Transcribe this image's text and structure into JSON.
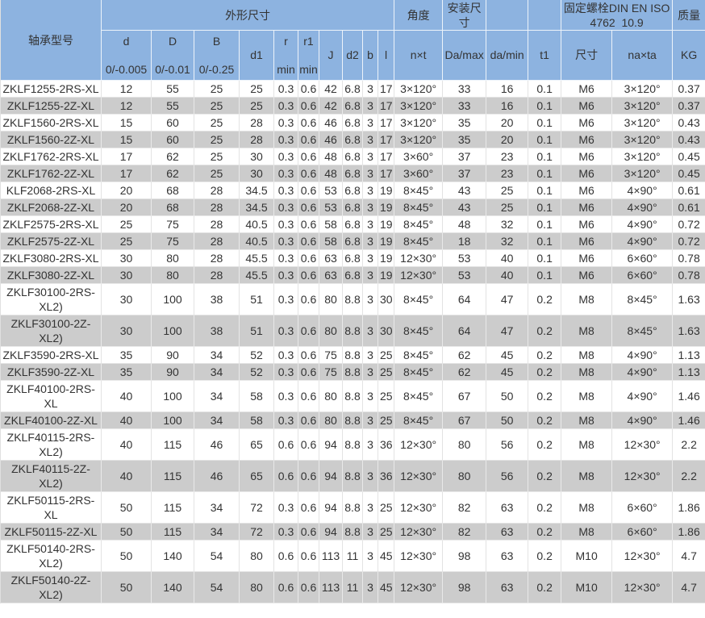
{
  "colors": {
    "header_bg": "#8db3e0",
    "row_stripe": "#cccccc",
    "row_bg": "#ffffff",
    "text": "#333333"
  },
  "table": {
    "header": {
      "model": "轴承型号",
      "group_dimensions": "外形尺寸",
      "group_angle": "角度",
      "group_mounting": "安装尺寸",
      "group_bolt_line1": "固定螺栓DIN EN ISO",
      "group_bolt_line2": "4762  10.9",
      "group_mass": "质量"
    },
    "columns": [
      {
        "label": "d",
        "sub": "0/-0.005"
      },
      {
        "label": "D",
        "sub": "0/-0.01"
      },
      {
        "label": "B",
        "sub": "0/-0.25"
      },
      {
        "label": "d1",
        "sub": ""
      },
      {
        "label": "r",
        "sub": "min"
      },
      {
        "label": "r1",
        "sub": "min"
      },
      {
        "label": "J",
        "sub": ""
      },
      {
        "label": "d2",
        "sub": ""
      },
      {
        "label": "b",
        "sub": ""
      },
      {
        "label": "l",
        "sub": ""
      },
      {
        "label": "n×t",
        "sub": ""
      },
      {
        "label": "Da/max",
        "sub": ""
      },
      {
        "label": "da/min",
        "sub": ""
      },
      {
        "label": "t1",
        "sub": ""
      },
      {
        "label": "尺寸",
        "sub": ""
      },
      {
        "label": "na×ta",
        "sub": ""
      },
      {
        "label": "KG",
        "sub": ""
      }
    ],
    "rows": [
      [
        "ZKLF1255-2RS-XL",
        "12",
        "55",
        "25",
        "25",
        "0.3",
        "0.6",
        "42",
        "6.8",
        "3",
        "17",
        "3×120°",
        "33",
        "16",
        "0.1",
        "M6",
        "3×120°",
        "0.37"
      ],
      [
        "ZKLF1255-2Z-XL",
        "12",
        "55",
        "25",
        "25",
        "0.3",
        "0.6",
        "42",
        "6.8",
        "3",
        "17",
        "3×120°",
        "33",
        "16",
        "0.1",
        "M6",
        "3×120°",
        "0.37"
      ],
      [
        "ZKLF1560-2RS-XL",
        "15",
        "60",
        "25",
        "28",
        "0.3",
        "0.6",
        "46",
        "6.8",
        "3",
        "17",
        "3×120°",
        "35",
        "20",
        "0.1",
        "M6",
        "3×120°",
        "0.43"
      ],
      [
        "ZKLF1560-2Z-XL",
        "15",
        "60",
        "25",
        "28",
        "0.3",
        "0.6",
        "46",
        "6.8",
        "3",
        "17",
        "3×120°",
        "35",
        "20",
        "0.1",
        "M6",
        "3×120°",
        "0.43"
      ],
      [
        "ZKLF1762-2RS-XL",
        "17",
        "62",
        "25",
        "30",
        "0.3",
        "0.6",
        "48",
        "6.8",
        "3",
        "17",
        "3×60°",
        "37",
        "23",
        "0.1",
        "M6",
        "3×120°",
        "0.45"
      ],
      [
        "ZKLF1762-2Z-XL",
        "17",
        "62",
        "25",
        "30",
        "0.3",
        "0.6",
        "48",
        "6.8",
        "3",
        "17",
        "3×60°",
        "37",
        "23",
        "0.1",
        "M6",
        "3×120°",
        "0.45"
      ],
      [
        "KLF2068-2RS-XL",
        "20",
        "68",
        "28",
        "34.5",
        "0.3",
        "0.6",
        "53",
        "6.8",
        "3",
        "19",
        "8×45°",
        "43",
        "25",
        "0.1",
        "M6",
        "4×90°",
        "0.61"
      ],
      [
        "ZKLF2068-2Z-XL",
        "20",
        "68",
        "28",
        "34.5",
        "0.3",
        "0.6",
        "53",
        "6.8",
        "3",
        "19",
        "8×45°",
        "43",
        "25",
        "0.1",
        "M6",
        "4×90°",
        "0.61"
      ],
      [
        "ZKLF2575-2RS-XL",
        "25",
        "75",
        "28",
        "40.5",
        "0.3",
        "0.6",
        "58",
        "6.8",
        "3",
        "19",
        "8×45°",
        "48",
        "32",
        "0.1",
        "M6",
        "4×90°",
        "0.72"
      ],
      [
        "ZKLF2575-2Z-XL",
        "25",
        "75",
        "28",
        "40.5",
        "0.3",
        "0.6",
        "58",
        "6.8",
        "3",
        "19",
        "8×45°",
        "18",
        "32",
        "0.1",
        "M6",
        "4×90°",
        "0.72"
      ],
      [
        "ZKLF3080-2RS-XL",
        "30",
        "80",
        "28",
        "45.5",
        "0.3",
        "0.6",
        "63",
        "6.8",
        "3",
        "19",
        "12×30°",
        "53",
        "40",
        "0.1",
        "M6",
        "6×60°",
        "0.78"
      ],
      [
        "ZKLF3080-2Z-XL",
        "30",
        "80",
        "28",
        "45.5",
        "0.3",
        "0.6",
        "63",
        "6.8",
        "3",
        "19",
        "12×30°",
        "53",
        "40",
        "0.1",
        "M6",
        "6×60°",
        "0.78"
      ],
      [
        "ZKLF30100-2RS-XL2)",
        "30",
        "100",
        "38",
        "51",
        "0.3",
        "0.6",
        "80",
        "8.8",
        "3",
        "30",
        "8×45°",
        "64",
        "47",
        "0.2",
        "M8",
        "8×45°",
        "1.63"
      ],
      [
        "ZKLF30100-2Z-XL2)",
        "30",
        "100",
        "38",
        "51",
        "0.3",
        "0.6",
        "80",
        "8.8",
        "3",
        "30",
        "8×45°",
        "64",
        "47",
        "0.2",
        "M8",
        "8×45°",
        "1.63"
      ],
      [
        "ZKLF3590-2RS-XL",
        "35",
        "90",
        "34",
        "52",
        "0.3",
        "0.6",
        "75",
        "8.8",
        "3",
        "25",
        "8×45°",
        "62",
        "45",
        "0.2",
        "M8",
        "4×90°",
        "1.13"
      ],
      [
        "ZKLF3590-2Z-XL",
        "35",
        "90",
        "34",
        "52",
        "0.3",
        "0.6",
        "75",
        "8.8",
        "3",
        "25",
        "8×45°",
        "62",
        "45",
        "0.2",
        "M8",
        "4×90°",
        "1.13"
      ],
      [
        "ZKLF40100-2RS-XL",
        "40",
        "100",
        "34",
        "58",
        "0.3",
        "0.6",
        "80",
        "8.8",
        "3",
        "25",
        "8×45°",
        "67",
        "50",
        "0.2",
        "M8",
        "4×90°",
        "1.46"
      ],
      [
        "ZKLF40100-2Z-XL",
        "40",
        "100",
        "34",
        "58",
        "0.3",
        "0.6",
        "80",
        "8.8",
        "3",
        "25",
        "8×45°",
        "67",
        "50",
        "0.2",
        "M8",
        "4×90°",
        "1.46"
      ],
      [
        "ZKLF40115-2RS-XL2)",
        "40",
        "115",
        "46",
        "65",
        "0.6",
        "0.6",
        "94",
        "8.8",
        "3",
        "36",
        "12×30°",
        "80",
        "56",
        "0.2",
        "M8",
        "12×30°",
        "2.2"
      ],
      [
        "ZKLF40115-2Z-XL2)",
        "40",
        "115",
        "46",
        "65",
        "0.6",
        "0.6",
        "94",
        "8.8",
        "3",
        "36",
        "12×30°",
        "80",
        "56",
        "0.2",
        "M8",
        "12×30°",
        "2.2"
      ],
      [
        "ZKLF50115-2RS-XL",
        "50",
        "115",
        "34",
        "72",
        "0.3",
        "0.6",
        "94",
        "8.8",
        "3",
        "25",
        "12×30°",
        "82",
        "63",
        "0.2",
        "M8",
        "6×60°",
        "1.86"
      ],
      [
        "ZKLF50115-2Z-XL",
        "50",
        "115",
        "34",
        "72",
        "0.3",
        "0.6",
        "94",
        "8.8",
        "3",
        "25",
        "12×30°",
        "82",
        "63",
        "0.2",
        "M8",
        "6×60°",
        "1.86"
      ],
      [
        "ZKLF50140-2RS-XL2)",
        "50",
        "140",
        "54",
        "80",
        "0.6",
        "0.6",
        "113",
        "11",
        "3",
        "45",
        "12×30°",
        "98",
        "63",
        "0.2",
        "M10",
        "12×30°",
        "4.7"
      ],
      [
        "ZKLF50140-2Z-XL2)",
        "50",
        "140",
        "54",
        "80",
        "0.6",
        "0.6",
        "113",
        "11",
        "3",
        "45",
        "12×30°",
        "98",
        "63",
        "0.2",
        "M10",
        "12×30°",
        "4.7"
      ]
    ]
  }
}
